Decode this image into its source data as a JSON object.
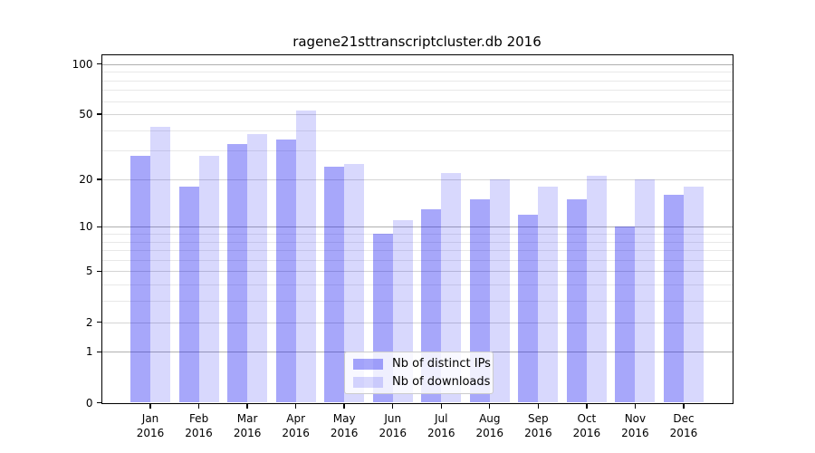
{
  "title": "ragene21sttranscriptcluster.db 2016",
  "chart_data": {
    "type": "bar",
    "title": "ragene21sttranscriptcluster.db 2016",
    "categories": [
      "Jan",
      "Feb",
      "Mar",
      "Apr",
      "May",
      "Jun",
      "Jul",
      "Aug",
      "Sep",
      "Oct",
      "Nov",
      "Dec"
    ],
    "x_tick_year": "2016",
    "series": [
      {
        "name": "Nb of distinct IPs",
        "color": "rgba(10,10,240,0.36)",
        "values": [
          28,
          18,
          33,
          35,
          24,
          9,
          13,
          15,
          12,
          15,
          10,
          16
        ]
      },
      {
        "name": "Nb of downloads",
        "color": "rgba(10,10,240,0.16)",
        "values": [
          42,
          28,
          38,
          53,
          25,
          11,
          22,
          20,
          18,
          21,
          20,
          18
        ]
      }
    ],
    "xlabel": "",
    "ylabel": "",
    "y_scale": "log1p",
    "y_ticks": [
      0,
      1,
      2,
      5,
      10,
      20,
      50,
      100
    ],
    "y_minor_gridlines": [
      3,
      4,
      6,
      7,
      8,
      9,
      30,
      40,
      60,
      70,
      80,
      90
    ],
    "y_decade_gridlines": [
      1,
      10,
      100
    ],
    "ylim": [
      0,
      113
    ],
    "grid": true,
    "legend_position": "lower-center-inside",
    "frame_color": "#000000",
    "background_color": "#ffffff"
  }
}
